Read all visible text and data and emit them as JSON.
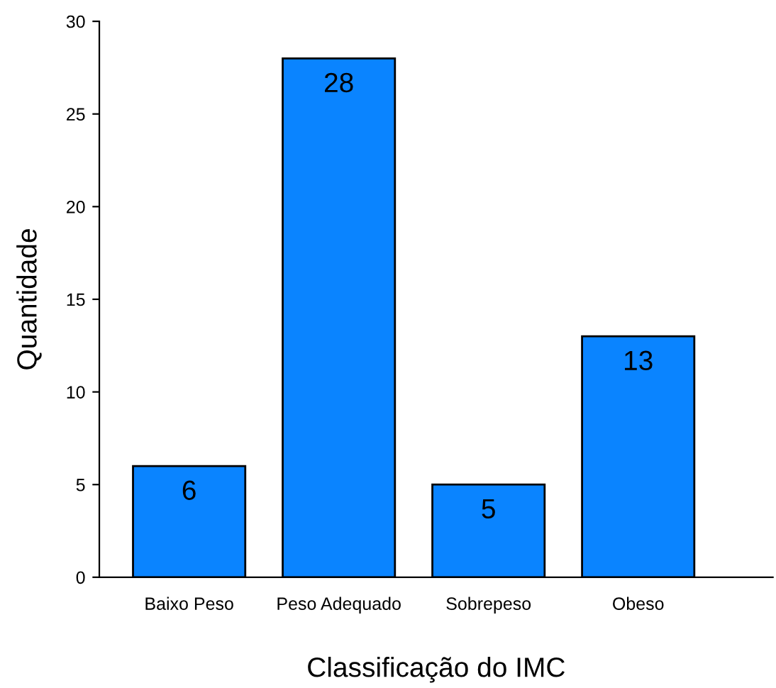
{
  "chart_data": {
    "type": "bar",
    "xlabel": "Classificação do IMC",
    "ylabel": "Quantidade",
    "categories": [
      "Baixo Peso",
      "Peso Adequado",
      "Sobrepeso",
      "Obeso"
    ],
    "values": [
      6,
      28,
      5,
      13
    ],
    "color": "#0a84ff",
    "data_labels": true,
    "ylim": [
      0,
      30
    ],
    "yticks": [
      0,
      5,
      10,
      15,
      20,
      25,
      30
    ],
    "grid": false,
    "legend": false
  }
}
